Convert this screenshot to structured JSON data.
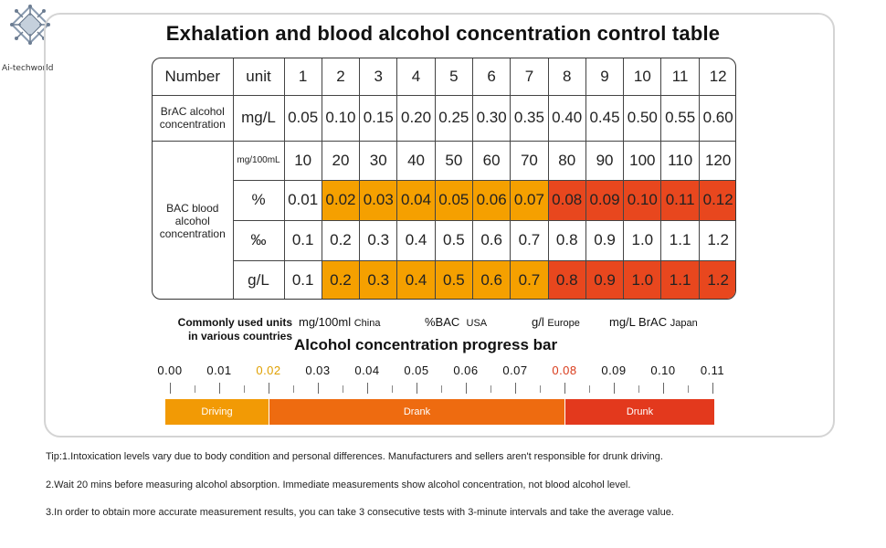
{
  "logo": {
    "text": "Ai-techworld",
    "icon": "circuit-brain-icon"
  },
  "title": "Exhalation and blood alcohol concentration control table",
  "table": {
    "header": {
      "number_label": "Number",
      "unit_label": "unit",
      "numbers": [
        "1",
        "2",
        "3",
        "4",
        "5",
        "6",
        "7",
        "8",
        "9",
        "10",
        "11",
        "12"
      ]
    },
    "brac": {
      "label": "BrAC alcohol concentration",
      "unit": "mg/L",
      "values": [
        "0.05",
        "0.10",
        "0.15",
        "0.20",
        "0.25",
        "0.30",
        "0.35",
        "0.40",
        "0.45",
        "0.50",
        "0.55",
        "0.60"
      ]
    },
    "bac_label": "BAC blood alcohol concentration",
    "bac_rows": [
      {
        "unit": "mg/100mL",
        "values": [
          "10",
          "20",
          "30",
          "40",
          "50",
          "60",
          "70",
          "80",
          "90",
          "100",
          "110",
          "120"
        ],
        "levels": [
          "",
          "",
          "",
          "",
          "",
          "",
          "",
          "",
          "",
          "",
          "",
          ""
        ]
      },
      {
        "unit": "%",
        "values": [
          "0.01",
          "0.02",
          "0.03",
          "0.04",
          "0.05",
          "0.06",
          "0.07",
          "0.08",
          "0.09",
          "0.10",
          "0.11",
          "0.12"
        ],
        "levels": [
          "",
          "o",
          "o",
          "o",
          "o",
          "o",
          "o",
          "r",
          "r",
          "r",
          "r",
          "r"
        ]
      },
      {
        "unit": "‰",
        "values": [
          "0.1",
          "0.2",
          "0.3",
          "0.4",
          "0.5",
          "0.6",
          "0.7",
          "0.8",
          "0.9",
          "1.0",
          "1.1",
          "1.2"
        ],
        "levels": [
          "",
          "",
          "",
          "",
          "",
          "",
          "",
          "",
          "",
          "",
          "",
          ""
        ]
      },
      {
        "unit": "g/L",
        "values": [
          "0.1",
          "0.2",
          "0.3",
          "0.4",
          "0.5",
          "0.6",
          "0.7",
          "0.8",
          "0.9",
          "1.0",
          "1.1",
          "1.2"
        ],
        "levels": [
          "",
          "o",
          "o",
          "o",
          "o",
          "o",
          "o",
          "r",
          "r",
          "r",
          "r",
          "r"
        ]
      }
    ]
  },
  "units_section": {
    "label_line1": "Commonly used units",
    "label_line2": "in various countries",
    "items": [
      {
        "unit": "mg/100ml",
        "country": "China"
      },
      {
        "unit": "%BAC",
        "country": "USA"
      },
      {
        "unit": "g/l",
        "country": "Europe"
      },
      {
        "unit": "mg/L BrAC",
        "country": "Japan"
      }
    ]
  },
  "progress_bar": {
    "title": "Alcohol concentration progress bar",
    "ticks": [
      "0.00",
      "0.01",
      "0.02",
      "0.03",
      "0.04",
      "0.05",
      "0.06",
      "0.07",
      "0.08",
      "0.09",
      "0.10",
      "0.11"
    ],
    "highlight_ticks": {
      "0.02": "#e0a000",
      "0.08": "#d93a1a"
    },
    "segments": [
      {
        "label": "Driving",
        "from": 0.0,
        "to": 0.02,
        "color": "#f29a05"
      },
      {
        "label": "Drank",
        "from": 0.02,
        "to": 0.08,
        "color": "#ee6b10"
      },
      {
        "label": "Drunk",
        "from": 0.08,
        "to": 0.11,
        "color": "#e3391d"
      }
    ],
    "min": 0.0,
    "max": 0.11
  },
  "tips": [
    "Tip:1.Intoxication levels vary due to body condition and personal differences. Manufacturers and sellers aren't responsible for drunk driving.",
    "2.Wait 20 mins before measuring alcohol absorption. Immediate measurements show alcohol concentration, not blood alcohol level.",
    "3.In order to obtain more accurate measurement results, you can take 3 consecutive tests with 3-minute intervals and take the average value."
  ]
}
